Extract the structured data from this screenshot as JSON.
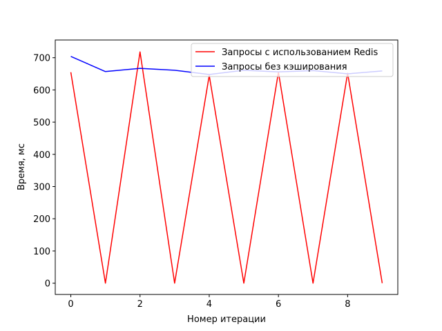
{
  "chart_data": {
    "type": "line",
    "title": "",
    "xlabel": "Номер итерации",
    "ylabel": "Время, мс",
    "x": [
      0,
      1,
      2,
      3,
      4,
      5,
      6,
      7,
      8,
      9
    ],
    "xlim": [
      -0.45,
      9.45
    ],
    "ylim": [
      -35,
      755
    ],
    "xticks": [
      0,
      2,
      4,
      6,
      8
    ],
    "yticks": [
      0,
      100,
      200,
      300,
      400,
      500,
      600,
      700
    ],
    "grid": false,
    "legend_position": "top-right",
    "series": [
      {
        "name": "Запросы с использованием Redis",
        "color": "#ff0000",
        "values": [
          655,
          0,
          718,
          0,
          645,
          0,
          655,
          0,
          652,
          0
        ]
      },
      {
        "name": "Запросы без кэширования",
        "color": "#0000ff",
        "values": [
          704,
          657,
          667,
          661,
          648,
          661,
          656,
          660,
          650,
          659
        ]
      }
    ]
  }
}
